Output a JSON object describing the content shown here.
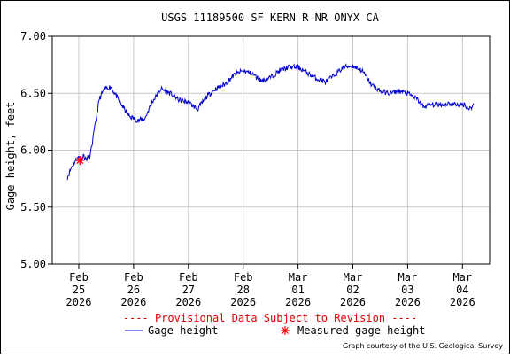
{
  "chart_data": {
    "type": "line",
    "title": "USGS 11189500 SF KERN R NR ONYX CA",
    "ylabel": "Gage height, feet",
    "xlabel": "",
    "ylim": [
      5.0,
      7.0
    ],
    "yticks": [
      "5.00",
      "5.50",
      "6.00",
      "6.50",
      "7.00"
    ],
    "xticks": [
      {
        "month": "Feb",
        "day": "25",
        "year": "2026"
      },
      {
        "month": "Feb",
        "day": "26",
        "year": "2026"
      },
      {
        "month": "Feb",
        "day": "27",
        "year": "2026"
      },
      {
        "month": "Feb",
        "day": "28",
        "year": "2026"
      },
      {
        "month": "Mar",
        "day": "01",
        "year": "2026"
      },
      {
        "month": "Mar",
        "day": "02",
        "year": "2026"
      },
      {
        "month": "Mar",
        "day": "03",
        "year": "2026"
      },
      {
        "month": "Mar",
        "day": "04",
        "year": "2026"
      }
    ],
    "grid": true,
    "series": [
      {
        "name": "Gage height",
        "color": "#0000cc",
        "points": [
          [
            "Feb 24 19:00",
            5.76
          ],
          [
            "Feb 24 21:00",
            5.86
          ],
          [
            "Feb 24 23:00",
            5.92
          ],
          [
            "Feb 25 00:00",
            5.94
          ],
          [
            "Feb 25 01:00",
            5.91
          ],
          [
            "Feb 25 02:00",
            5.96
          ],
          [
            "Feb 25 03:00",
            5.92
          ],
          [
            "Feb 25 05:00",
            5.95
          ],
          [
            "Feb 25 07:00",
            6.2
          ],
          [
            "Feb 25 09:00",
            6.45
          ],
          [
            "Feb 25 11:00",
            6.53
          ],
          [
            "Feb 25 14:00",
            6.56
          ],
          [
            "Feb 25 18:00",
            6.42
          ],
          [
            "Feb 25 22:00",
            6.3
          ],
          [
            "Feb 26 02:00",
            6.26
          ],
          [
            "Feb 26 05:00",
            6.28
          ],
          [
            "Feb 26 08:00",
            6.42
          ],
          [
            "Feb 26 12:00",
            6.54
          ],
          [
            "Feb 26 16:00",
            6.5
          ],
          [
            "Feb 26 20:00",
            6.44
          ],
          [
            "Feb 27 00:00",
            6.42
          ],
          [
            "Feb 27 04:00",
            6.36
          ],
          [
            "Feb 27 08:00",
            6.47
          ],
          [
            "Feb 27 12:00",
            6.54
          ],
          [
            "Feb 27 16:00",
            6.58
          ],
          [
            "Feb 27 20:00",
            6.66
          ],
          [
            "Feb 28 00:00",
            6.7
          ],
          [
            "Feb 28 04:00",
            6.67
          ],
          [
            "Feb 28 08:00",
            6.61
          ],
          [
            "Feb 28 12:00",
            6.64
          ],
          [
            "Feb 28 16:00",
            6.7
          ],
          [
            "Feb 28 20:00",
            6.73
          ],
          [
            "Mar 01 00:00",
            6.73
          ],
          [
            "Mar 01 04:00",
            6.68
          ],
          [
            "Mar 01 08:00",
            6.63
          ],
          [
            "Mar 01 12:00",
            6.6
          ],
          [
            "Mar 01 16:00",
            6.66
          ],
          [
            "Mar 01 20:00",
            6.73
          ],
          [
            "Mar 02 00:00",
            6.74
          ],
          [
            "Mar 02 04:00",
            6.7
          ],
          [
            "Mar 02 08:00",
            6.58
          ],
          [
            "Mar 02 12:00",
            6.52
          ],
          [
            "Mar 02 16:00",
            6.5
          ],
          [
            "Mar 02 20:00",
            6.52
          ],
          [
            "Mar 03 00:00",
            6.5
          ],
          [
            "Mar 03 04:00",
            6.45
          ],
          [
            "Mar 03 07:00",
            6.38
          ],
          [
            "Mar 03 10:00",
            6.4
          ],
          [
            "Mar 03 14:00",
            6.4
          ],
          [
            "Mar 03 18:00",
            6.41
          ],
          [
            "Mar 03 22:00",
            6.4
          ],
          [
            "Mar 04 01:00",
            6.4
          ],
          [
            "Mar 04 03:00",
            6.36
          ],
          [
            "Mar 04 05:00",
            6.4
          ]
        ]
      },
      {
        "name": "Measured gage height",
        "color": "#ff0000",
        "marker": "asterisk",
        "points": [
          [
            "Feb 25 00:30",
            5.91
          ]
        ]
      }
    ],
    "provisional_note": "---- Provisional Data Subject to Revision ----",
    "legend": {
      "placement": "bottom",
      "entries": [
        {
          "label": "Gage height",
          "symbol": "line",
          "color": "#0000cc"
        },
        {
          "label": "Measured gage height",
          "symbol": "asterisk",
          "color": "#ff0000"
        }
      ]
    },
    "credit": "Graph courtesy of the U.S. Geological Survey"
  }
}
